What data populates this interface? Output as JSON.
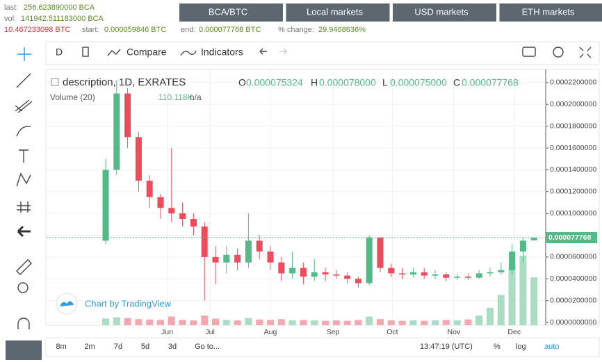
{
  "stats": {
    "last_label": "last:",
    "last": "256.623890000 BCA",
    "vol_label": "vol:",
    "vol": "141942.511183000 BCA",
    "vol_btc": "10.467233098 BTC",
    "start_label": "start:",
    "start": "0.000059846 BTC",
    "end_label": "end:",
    "end": "0.000077768 BTC",
    "change_label": "% change:",
    "change": "29.9468636%"
  },
  "nav": [
    "BCA/BTC",
    "Local markets",
    "USD markets",
    "ETH markets"
  ],
  "toolbar": {
    "interval": "D",
    "compare": "Compare",
    "indicators": "Indicators"
  },
  "legend": {
    "symbol": "description, 1D, EXRATES",
    "o": "O",
    "o_val": "0.000075324",
    "h": "H",
    "h_val": "0.000078000",
    "l": "L",
    "l_val": "0.000075000",
    "c": "C",
    "c_val": "0.000077768",
    "volume": "Volume (20)",
    "volume_val": "110.118K",
    "volume_na": "n/a"
  },
  "watermark": "Chart by TradingView",
  "bottom": {
    "ranges": [
      "8m",
      "2m",
      "7d",
      "5d",
      "3d"
    ],
    "goto": "Go to...",
    "time": "13:47:19 (UTC)",
    "percent": "%",
    "log": "log",
    "auto": "auto"
  },
  "chart_data": {
    "type": "candlestick",
    "open": [
      7.5e-05,
      0.00014,
      0.00021,
      0.00017,
      0.00013,
      0.000115,
      0.000105,
      0.0001,
      9.5e-05,
      8.8e-05,
      6e-05,
      5.5e-05,
      6.2e-05,
      5.5e-05,
      7.5e-05,
      6.5e-05,
      5.5e-05,
      4.5e-05,
      5e-05,
      4.2e-05,
      4.6e-05,
      4.4e-05,
      4.3e-05,
      4e-05,
      3.6e-05,
      7.8e-05,
      5e-05,
      4.5e-05,
      4.4e-05,
      4.6e-05,
      4.3e-05,
      4.4e-05,
      4.1e-05,
      4.2e-05,
      4.1e-05,
      4.5e-05,
      4.6e-05,
      4.8e-05,
      6.5e-05,
      7.5324e-05
    ],
    "high": [
      0.00015,
      0.000222,
      0.000215,
      0.000175,
      0.000135,
      0.000118,
      0.00016,
      0.00011,
      0.0001,
      9.2e-05,
      7e-05,
      7e-05,
      6.8e-05,
      0.0001,
      8e-05,
      7e-05,
      6e-05,
      6.5e-05,
      5.5e-05,
      5.8e-05,
      5e-05,
      4.8e-05,
      4.6e-05,
      4.2e-05,
      8e-05,
      7.8e-05,
      5.4e-05,
      5e-05,
      5e-05,
      5e-05,
      4.8e-05,
      4.6e-05,
      4.4e-05,
      4.5e-05,
      4.8e-05,
      5e-05,
      5.5e-05,
      7.2e-05,
      7.8e-05,
      7.8e-05
    ],
    "low": [
      7.2e-05,
      0.000135,
      0.00016,
      0.00012,
      0.000105,
      9.5e-05,
      9.2e-05,
      8.8e-05,
      8e-05,
      2e-05,
      3.5e-05,
      4.5e-05,
      4.8e-05,
      5e-05,
      5.8e-05,
      4.8e-05,
      3.8e-05,
      4e-05,
      3.5e-05,
      3.8e-05,
      3.8e-05,
      4e-05,
      3.6e-05,
      3.2e-05,
      3.4e-05,
      4.6e-05,
      4.2e-05,
      4e-05,
      4.1e-05,
      4e-05,
      4e-05,
      3.8e-05,
      3.9e-05,
      3.9e-05,
      4e-05,
      4.2e-05,
      4.4e-05,
      4.4e-05,
      5.5e-05,
      7.5e-05
    ],
    "close": [
      0.00014,
      0.00021,
      0.00017,
      0.00013,
      0.000115,
      0.000105,
      0.0001,
      9.5e-05,
      8.8e-05,
      6e-05,
      5.5e-05,
      6.2e-05,
      5.5e-05,
      7.5e-05,
      6.5e-05,
      5.5e-05,
      4.5e-05,
      5e-05,
      4.2e-05,
      4.6e-05,
      4.4e-05,
      4.3e-05,
      4e-05,
      3.6e-05,
      7.8e-05,
      5e-05,
      4.5e-05,
      4.4e-05,
      4.6e-05,
      4.3e-05,
      4.4e-05,
      4.1e-05,
      4.2e-05,
      4.1e-05,
      4.5e-05,
      4.6e-05,
      4.8e-05,
      6.5e-05,
      7.5e-05,
      7.7768e-05
    ],
    "volume": [
      15000,
      18000,
      16000,
      14000,
      13000,
      12000,
      20000,
      12000,
      11000,
      22000,
      15000,
      12000,
      11000,
      16000,
      13000,
      12000,
      14000,
      11000,
      12000,
      11000,
      10000,
      11000,
      10000,
      12000,
      20000,
      14000,
      11000,
      10000,
      11000,
      10000,
      11000,
      12000,
      11000,
      13000,
      22000,
      40000,
      70000,
      140000,
      160000,
      110118
    ],
    "ylim": [
      -2.5e-06,
      0.000232
    ],
    "yticks": [
      {
        "value": 0.00022,
        "label": "0.0002200000"
      },
      {
        "value": 0.0002,
        "label": "0.0002000000"
      },
      {
        "value": 0.00018,
        "label": "0.0001800000"
      },
      {
        "value": 0.00016,
        "label": "0.0001600000"
      },
      {
        "value": 0.00014,
        "label": "0.0001400000"
      },
      {
        "value": 0.00012,
        "label": "0.0001200000"
      },
      {
        "value": 0.0001,
        "label": "0.0001000000"
      },
      {
        "value": 8e-05,
        "label": "0.0000800000"
      },
      {
        "value": 6e-05,
        "label": "0.0000600000"
      },
      {
        "value": 4e-05,
        "label": "0.0000400000"
      },
      {
        "value": 2e-05,
        "label": "0.0000200000"
      },
      {
        "value": 0,
        "label": "0.0000000000"
      }
    ],
    "xticks": [
      {
        "value": 5.6,
        "label": "Jun"
      },
      {
        "value": 9.5,
        "label": "Jul"
      },
      {
        "value": 15,
        "label": "Aug"
      },
      {
        "value": 20.7,
        "label": "Sep"
      },
      {
        "value": 26.1,
        "label": "Oct"
      },
      {
        "value": 31.7,
        "label": "Nov"
      },
      {
        "value": 37.2,
        "label": "Dec"
      }
    ],
    "up_color": "#53b987",
    "down_color": "#eb4d5c",
    "grid": true
  }
}
